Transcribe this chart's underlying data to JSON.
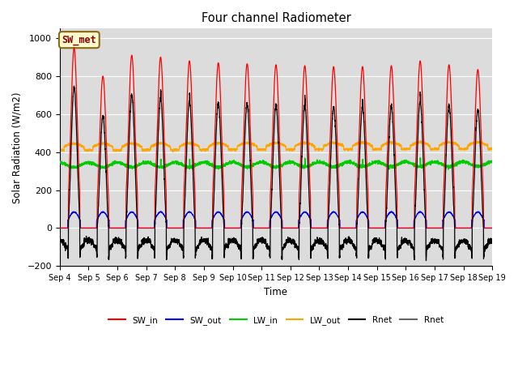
{
  "title": "Four channel Radiometer",
  "xlabel": "Time",
  "ylabel": "Solar Radiation (W/m2)",
  "ylim": [
    -200,
    1050
  ],
  "n_days": 15,
  "xtick_labels": [
    "Sep 4",
    "Sep 5",
    "Sep 6",
    "Sep 7",
    "Sep 8",
    "Sep 9",
    "Sep 10",
    "Sep 11",
    "Sep 12",
    "Sep 13",
    "Sep 14",
    "Sep 15",
    "Sep 16",
    "Sep 17",
    "Sep 18",
    "Sep 19"
  ],
  "annotation_text": "SW_met",
  "annotation_color": "#8B0000",
  "annotation_bg": "#FFFACD",
  "annotation_edge": "#8B6914",
  "bg_color": "#DCDCDC",
  "fig_color": "#FFFFFF",
  "colors": {
    "SW_in": "#FF0000",
    "SW_out": "#0000FF",
    "LW_in": "#00CC00",
    "LW_out": "#FFA500",
    "Rnet": "#000000"
  },
  "legend_entries": [
    "SW_in",
    "SW_out",
    "LW_in",
    "LW_out",
    "Rnet",
    "Rnet"
  ],
  "legend_colors": [
    "#FF0000",
    "#0000FF",
    "#00CC00",
    "#FFA500",
    "#000000",
    "#666666"
  ],
  "sw_in_peaks": [
    950,
    800,
    910,
    900,
    880,
    870,
    865,
    860,
    855,
    850,
    850,
    855,
    880,
    860,
    835
  ],
  "lw_out_base": 410,
  "lw_in_base": 340,
  "rnet_night": -100
}
